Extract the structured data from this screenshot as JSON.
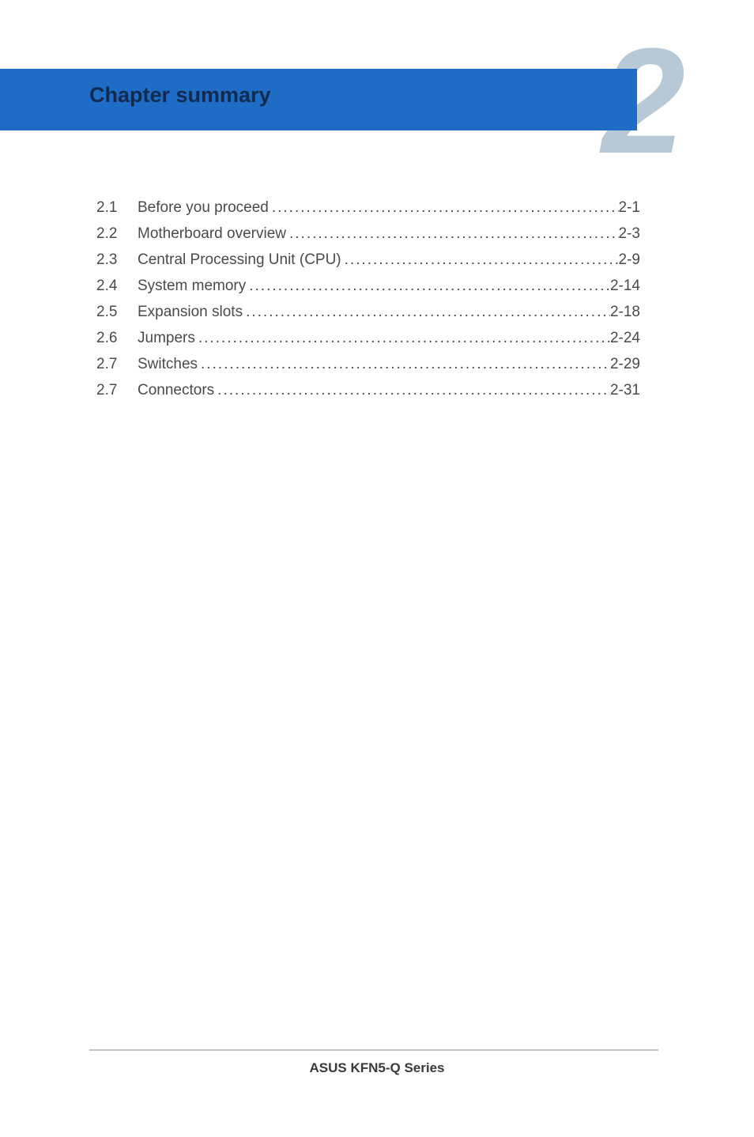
{
  "header": {
    "title": "Chapter summary",
    "title_color": "#102a50",
    "banner_bg": "#1e6cc6",
    "chapter_number": "2",
    "number_color": "#b7c9d6"
  },
  "toc": {
    "entries": [
      {
        "num": "2.1",
        "title": "Before you proceed",
        "page": "2-1"
      },
      {
        "num": "2.2",
        "title": "Motherboard overview",
        "page": "2-3"
      },
      {
        "num": "2.3",
        "title": "Central Processing Unit (CPU)",
        "page": "2-9"
      },
      {
        "num": "2.4",
        "title": "System memory",
        "page": "2-14"
      },
      {
        "num": "2.5",
        "title": "Expansion slots",
        "page": "2-18"
      },
      {
        "num": "2.6",
        "title": "Jumpers",
        "page": "2-24"
      },
      {
        "num": "2.7",
        "title": "Switches",
        "page": "2-29"
      },
      {
        "num": "2.7",
        "title": "Connectors",
        "page": "2-31"
      }
    ],
    "text_color": "#4a4a4a",
    "font_size": 19
  },
  "footer": {
    "text": "ASUS KFN5-Q Series",
    "divider_color": "#bfc8cf"
  },
  "page_bg": "#ffffff"
}
